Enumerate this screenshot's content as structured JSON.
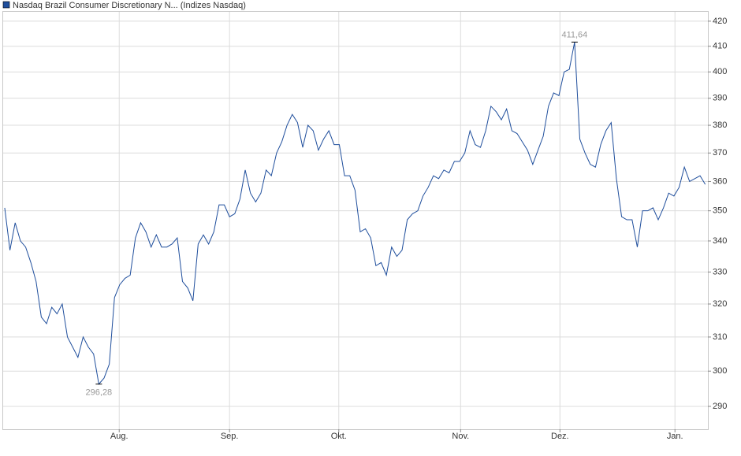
{
  "chart_data": {
    "type": "line",
    "yscale": "log",
    "grid": true,
    "series": [
      {
        "name": "Nasdaq Brazil Consumer Discretionary N... (Indizes Nasdaq)",
        "color": "#1f4e9c",
        "values": [
          351,
          337,
          346,
          340,
          338,
          333,
          327,
          316,
          314,
          319,
          317,
          320,
          310,
          307,
          304,
          310,
          307,
          305,
          296.28,
          298,
          302,
          322,
          326,
          328,
          329,
          341,
          346,
          343,
          338,
          342,
          338,
          338,
          339,
          341,
          327,
          325,
          321,
          339,
          342,
          339,
          343,
          352,
          352,
          348,
          349,
          354,
          364,
          356,
          353,
          356,
          364,
          362,
          370,
          374,
          380,
          384,
          381,
          372,
          380,
          378,
          371,
          375,
          378,
          373,
          373,
          362,
          362,
          357,
          343,
          344,
          341,
          332,
          333,
          329,
          338,
          335,
          337,
          347,
          349,
          350,
          355,
          358,
          362,
          361,
          364,
          363,
          367,
          367,
          370,
          378,
          373,
          372,
          378,
          387,
          385,
          382,
          386,
          378,
          377,
          374,
          371,
          366,
          371,
          376,
          387,
          392,
          391,
          400,
          401,
          411.64,
          375,
          370,
          366,
          365,
          373,
          378,
          381,
          361,
          348,
          347,
          347,
          338,
          350,
          350,
          351,
          347,
          351,
          356,
          355,
          358,
          365,
          360,
          361,
          362,
          359
        ],
        "value_labels": [
          null,
          null,
          null,
          null,
          null,
          null,
          null,
          null,
          null,
          null,
          null,
          null,
          null,
          null,
          null,
          null,
          null,
          null,
          "296,28",
          null,
          null,
          null,
          null,
          null,
          null,
          null,
          null,
          null,
          null,
          null,
          null,
          null,
          null,
          null,
          null,
          null,
          null,
          null,
          null,
          null,
          null,
          null,
          null,
          null,
          null,
          null,
          null,
          null,
          null,
          null,
          null,
          null,
          null,
          null,
          null,
          null,
          null,
          null,
          null,
          null,
          null,
          null,
          null,
          null,
          null,
          null,
          null,
          null,
          null,
          null,
          null,
          null,
          null,
          null,
          null,
          null,
          null,
          null,
          null,
          null,
          null,
          null,
          null,
          null,
          null,
          null,
          null,
          null,
          null,
          null,
          null,
          null,
          null,
          null,
          null,
          null,
          null,
          null,
          null,
          null,
          null,
          null,
          null,
          null,
          null,
          null,
          null,
          null,
          null,
          "411,64",
          null,
          null,
          null,
          null,
          null,
          null,
          null,
          null,
          null,
          null,
          null,
          null,
          null,
          null,
          null,
          null,
          null,
          null,
          null,
          null,
          null,
          null,
          null,
          null,
          null
        ]
      }
    ],
    "xlim": [
      -0.3,
      134.5
    ],
    "xticks": [
      {
        "value": 21.9,
        "label": "Aug."
      },
      {
        "value": 43,
        "label": "Sep."
      },
      {
        "value": 63.9,
        "label": "Okt."
      },
      {
        "value": 87.2,
        "label": "Nov."
      },
      {
        "value": 106.2,
        "label": "Dez."
      },
      {
        "value": 128.2,
        "label": "Jan."
      }
    ],
    "ylim": [
      283.7,
      423.8
    ],
    "yticks": [
      290,
      300,
      310,
      320,
      330,
      340,
      350,
      360,
      370,
      380,
      390,
      400,
      410,
      420
    ]
  }
}
